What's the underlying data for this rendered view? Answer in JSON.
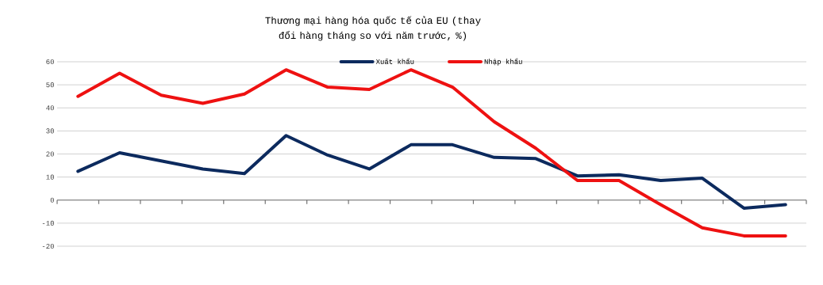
{
  "chart_data": {
    "type": "line",
    "title": "Thương mại hàng hóa quốc tế của EU (thay đổi hàng tháng so với năm trước, %)",
    "categories": [
      null,
      null,
      null,
      null,
      null,
      null,
      null,
      null,
      null,
      null,
      null,
      null,
      null,
      null,
      null,
      null,
      null,
      null
    ],
    "series": [
      {
        "name": "Xuất khẩu",
        "color": "#0c2a5e",
        "values": [
          12.5,
          20.5,
          17,
          13.5,
          11.5,
          28,
          19.5,
          13.5,
          24,
          24,
          18.5,
          18,
          10.5,
          11,
          8.5,
          9.5,
          -3.5,
          -2
        ]
      },
      {
        "name": "Nhập khẩu",
        "color": "#ee1111",
        "values": [
          45,
          55,
          45.5,
          42,
          46,
          56.5,
          49,
          48,
          56.5,
          49,
          34,
          22.5,
          8.5,
          8.5,
          -2,
          -12,
          -15.5,
          -15.5
        ]
      }
    ],
    "ylim": [
      -20,
      60
    ],
    "yticks": [
      -20,
      -10,
      0,
      10,
      20,
      30,
      40,
      50,
      60
    ],
    "grid": "y",
    "legend": "top",
    "marker": "none",
    "line_style": "solid"
  }
}
